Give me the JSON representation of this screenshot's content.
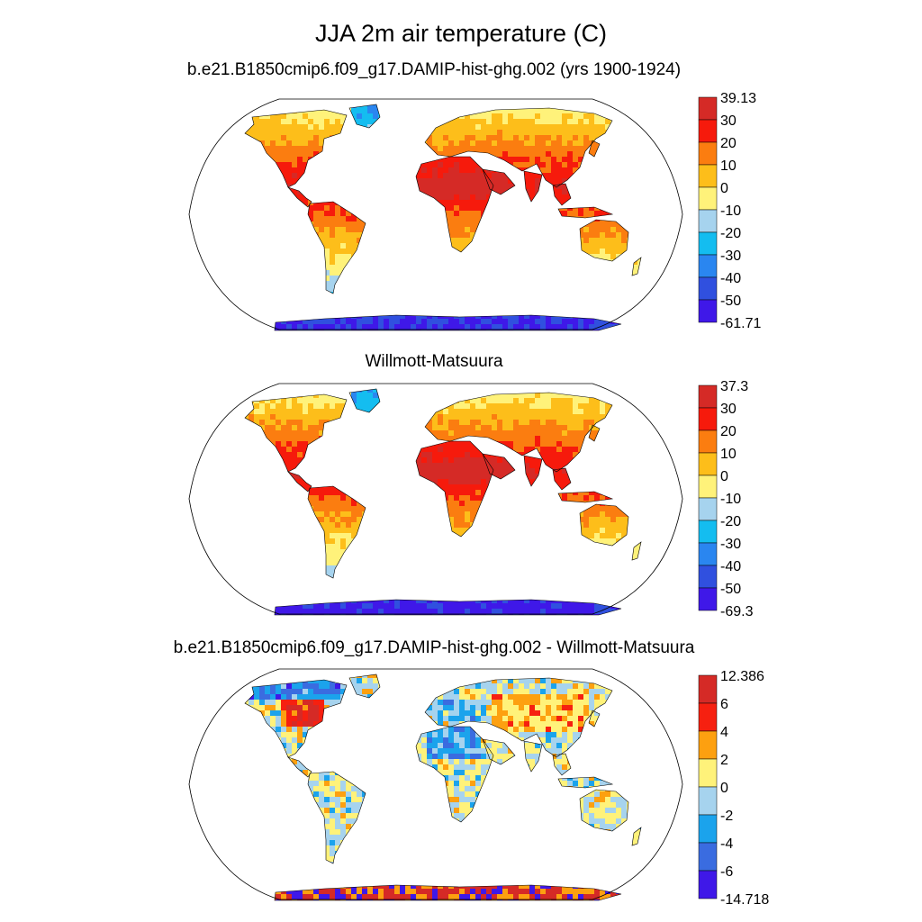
{
  "title": "JJA 2m air temperature (C)",
  "colors": {
    "abs_scale": [
      "#3f18e8",
      "#3050df",
      "#2a86f0",
      "#14bdf0",
      "#a6d3ee",
      "#fff27a",
      "#fdbe1a",
      "#fb7d10",
      "#f61a0c",
      "#d52a26"
    ],
    "diff_scale": [
      "#3f18e8",
      "#3a6ce0",
      "#1ba3ec",
      "#a6d3ee",
      "#fff27a",
      "#fda010",
      "#f62010",
      "#d52a26"
    ],
    "land_outline": "#000000",
    "map_border": "#000000"
  },
  "panels": [
    {
      "title": "b.e21.B1850cmip6.f09_g17.DAMIP-hist-ghg.002 (yrs 1900-1924)",
      "colorbar_labels": [
        "39.13",
        "30",
        "20",
        "10",
        "0",
        "-10",
        "-20",
        "-30",
        "-40",
        "-50",
        "-61.71"
      ],
      "field": "model",
      "value_range": [
        -61.71,
        39.13
      ]
    },
    {
      "title": "Willmott-Matsuura",
      "colorbar_labels": [
        "37.3",
        "30",
        "20",
        "10",
        "0",
        "-10",
        "-20",
        "-30",
        "-40",
        "-50",
        "-69.3"
      ],
      "field": "observations",
      "value_range": [
        -69.3,
        37.3
      ]
    },
    {
      "title": "b.e21.B1850cmip6.f09_g17.DAMIP-hist-ghg.002 - Willmott-Matsuura",
      "colorbar_labels": [
        "12.386",
        "6",
        "4",
        "2",
        "0",
        "-2",
        "-4",
        "-6",
        "-14.718"
      ],
      "field": "difference",
      "value_range": [
        -14.718,
        12.386
      ]
    }
  ]
}
